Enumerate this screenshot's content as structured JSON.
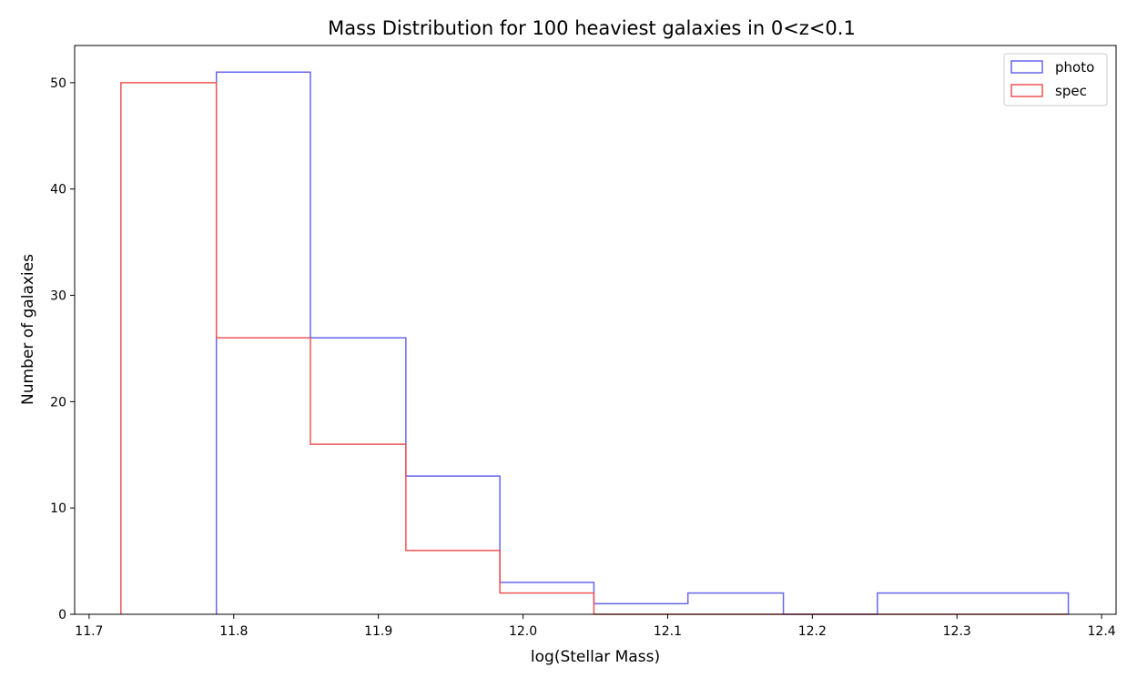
{
  "chart_data": {
    "type": "histogram",
    "title": "Mass Distribution for 100 heaviest galaxies in 0<z<0.1",
    "xlabel": "log(Stellar Mass)",
    "ylabel": "Number of galaxies",
    "xlim": [
      11.69,
      12.41
    ],
    "ylim": [
      0,
      53.5
    ],
    "xticks": [
      11.7,
      11.8,
      11.9,
      12.0,
      12.1,
      12.2,
      12.3,
      12.4
    ],
    "xtick_labels": [
      "11.7",
      "11.8",
      "11.9",
      "12.0",
      "12.1",
      "12.2",
      "12.3",
      "12.4"
    ],
    "yticks": [
      0,
      10,
      20,
      30,
      40,
      50
    ],
    "ytick_labels": [
      "0",
      "10",
      "20",
      "30",
      "40",
      "50"
    ],
    "grid": false,
    "legend_position": "top-right",
    "series": [
      {
        "name": "photo",
        "color": "#6666ee",
        "bin_edges": [
          11.788,
          11.853,
          11.919,
          11.984,
          12.049,
          12.114,
          12.18,
          12.245,
          12.31,
          12.377
        ],
        "counts": [
          51,
          26,
          13,
          3,
          1,
          2,
          0,
          2,
          2
        ]
      },
      {
        "name": "spec",
        "color": "#ee5555",
        "bin_edges": [
          11.722,
          11.788,
          11.853,
          11.919,
          11.984,
          12.049,
          12.114,
          12.18,
          12.245,
          12.31,
          12.377
        ],
        "counts": [
          50,
          26,
          16,
          6,
          2,
          0,
          0,
          0,
          0,
          0
        ]
      }
    ]
  }
}
